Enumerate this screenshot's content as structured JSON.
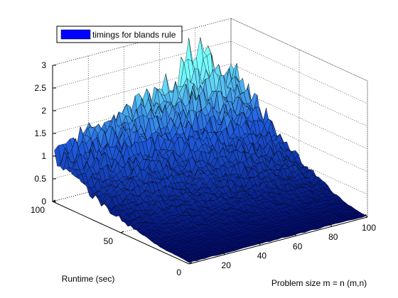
{
  "chart_data": {
    "type": "surface",
    "title": "",
    "xlabel": "Problem size m = n (m,n)",
    "ylabel": "Runtime (sec)",
    "zlabel": "",
    "xlim": [
      0,
      100
    ],
    "ylim": [
      0,
      100
    ],
    "zlim": [
      0,
      3
    ],
    "x_ticks": [
      20,
      40,
      60,
      80,
      100
    ],
    "y_ticks": [
      0,
      50,
      100
    ],
    "z_ticks": [
      0,
      0.5,
      1,
      1.5,
      2,
      2.5,
      3
    ],
    "x_tick_labels": [
      "20",
      "40",
      "60",
      "80",
      "100"
    ],
    "y_tick_labels": [
      "0",
      "50",
      "100"
    ],
    "z_tick_labels": [
      "0",
      "0.5",
      "1",
      "1.5",
      "2",
      "2.5",
      "3"
    ],
    "grid": true,
    "legend": {
      "placement": "top-left",
      "entries": [
        "timings for blands rule"
      ]
    },
    "series": [
      {
        "name": "timings for blands rule",
        "description_values": "runtime surface z(x,y): near 0 for small x, rising with y at large x; noisy ridge about 1.5-2.0 at y=100 with peaks near 2.7",
        "profile_at_y100": [
          {
            "x": 5,
            "z": 1.3
          },
          {
            "x": 20,
            "z": 1.4
          },
          {
            "x": 40,
            "z": 1.6
          },
          {
            "x": 60,
            "z": 1.8
          },
          {
            "x": 80,
            "z": 2.0
          },
          {
            "x": 95,
            "z": 1.9
          }
        ],
        "peaks": [
          {
            "x": 75,
            "y": 100,
            "z": 2.6
          },
          {
            "x": 85,
            "y": 100,
            "z": 2.7
          }
        ]
      }
    ]
  },
  "colors": {
    "legend_swatch": "#0000ff",
    "colormap_low": "#000a6e",
    "colormap_mid": "#1e5adc",
    "colormap_high": "#78ffff"
  }
}
